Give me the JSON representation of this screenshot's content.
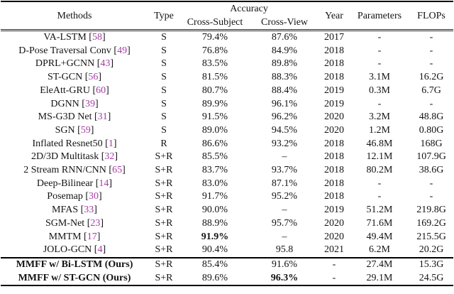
{
  "colors": {
    "cite_color": "#a63ba6",
    "rule_color": "#000000",
    "text_color": "#131313"
  },
  "header": {
    "methods": "Methods",
    "type": "Type",
    "accuracy": "Accuracy",
    "cross_subject": "Cross-Subject",
    "cross_view": "Cross-View",
    "year": "Year",
    "parameters": "Parameters",
    "flops": "FLOPs"
  },
  "rows": [
    {
      "method": "VA-LSTM",
      "cite": "58",
      "type": "S",
      "cross_subject": "79.4%",
      "cross_view": "87.6%",
      "year": "2017",
      "parameters": "-",
      "flops": "-"
    },
    {
      "method": "D-Pose Traversal Conv",
      "cite": "49",
      "type": "S",
      "cross_subject": "76.8%",
      "cross_view": "84.9%",
      "year": "2018",
      "parameters": "-",
      "flops": "-"
    },
    {
      "method": "DPRL+GCNN",
      "cite": "43",
      "type": "S",
      "cross_subject": "83.5%",
      "cross_view": "89.8%",
      "year": "2018",
      "parameters": "-",
      "flops": "-"
    },
    {
      "method": "ST-GCN",
      "cite": "56",
      "type": "S",
      "cross_subject": "81.5%",
      "cross_view": "88.3%",
      "year": "2018",
      "parameters": "3.1M",
      "flops": "16.2G"
    },
    {
      "method": "EleAtt-GRU",
      "cite": "60",
      "type": "S",
      "cross_subject": "80.7%",
      "cross_view": "88.4%",
      "year": "2019",
      "parameters": "0.3M",
      "flops": "6.7G"
    },
    {
      "method": "DGNN",
      "cite": "39",
      "type": "S",
      "cross_subject": "89.9%",
      "cross_view": "96.1%",
      "year": "2019",
      "parameters": "-",
      "flops": "-"
    },
    {
      "method": "MS-G3D Net",
      "cite": "31",
      "type": "S",
      "cross_subject": "91.5%",
      "cross_view": "96.2%",
      "year": "2020",
      "parameters": "3.2M",
      "flops": "48.8G"
    },
    {
      "method": "SGN",
      "cite": "59",
      "type": "S",
      "cross_subject": "89.0%",
      "cross_view": "94.5%",
      "year": "2020",
      "parameters": "1.2M",
      "flops": "0.80G"
    },
    {
      "method": "Inflated Resnet50",
      "cite": "1",
      "type": "R",
      "cross_subject": "86.6%",
      "cross_view": "93.2%",
      "year": "2018",
      "parameters": "46.8M",
      "flops": "168G"
    },
    {
      "method": "2D/3D Multitask",
      "cite": "32",
      "type": "S+R",
      "cross_subject": "85.5%",
      "cross_view": "–",
      "year": "2018",
      "parameters": "12.1M",
      "flops": "107.9G"
    },
    {
      "method": "2 Stream RNN/CNN",
      "cite": "65",
      "type": "S+R",
      "cross_subject": "83.7%",
      "cross_view": "93.7%",
      "year": "2018",
      "parameters": "80.2M",
      "flops": "38.6G"
    },
    {
      "method": "Deep-Bilinear",
      "cite": "14",
      "type": "S+R",
      "cross_subject": "83.0%",
      "cross_view": "87.1%",
      "year": "2018",
      "parameters": "-",
      "flops": "-"
    },
    {
      "method": "Posemap",
      "cite": "30",
      "type": "S+R",
      "cross_subject": "91.7%",
      "cross_view": "95.2%",
      "year": "2018",
      "parameters": "-",
      "flops": "-"
    },
    {
      "method": "MFAS",
      "cite": "33",
      "type": "S+R",
      "cross_subject": "90.0%",
      "cross_view": "–",
      "year": "2019",
      "parameters": "51.2M",
      "flops": "219.8G"
    },
    {
      "method": "SGM-Net",
      "cite": "23",
      "type": "S+R",
      "cross_subject": "88.9%",
      "cross_view": "95.7%",
      "year": "2020",
      "parameters": "71.6M",
      "flops": "169.2G"
    },
    {
      "method": "MMTM",
      "cite": "17",
      "type": "S+R",
      "cross_subject": "91.9%",
      "bold_cs": true,
      "cross_view": "–",
      "year": "2020",
      "parameters": "49.4M",
      "flops": "215.5G"
    },
    {
      "method": "JOLO-GCN",
      "cite": "4",
      "type": "S+R",
      "cross_subject": "90.4%",
      "cross_view": "95.8",
      "year": "2021",
      "parameters": "6.2M",
      "flops": "20.2G"
    },
    {
      "method": "MMFF w/ Bi-LSTM (Ours)",
      "cite": null,
      "bold_method": true,
      "group": "ours",
      "type": "S+R",
      "cross_subject": "85.4%",
      "cross_view": "91.6%",
      "year": "-",
      "parameters": "27.4M",
      "flops": "15.3G"
    },
    {
      "method": "MMFF w/ ST-GCN (Ours)",
      "cite": null,
      "bold_method": true,
      "group": "ours",
      "type": "S+R",
      "cross_subject": "89.6%",
      "cross_view": "96.3%",
      "bold_cv": true,
      "year": "-",
      "parameters": "29.1M",
      "flops": "24.5G"
    }
  ]
}
